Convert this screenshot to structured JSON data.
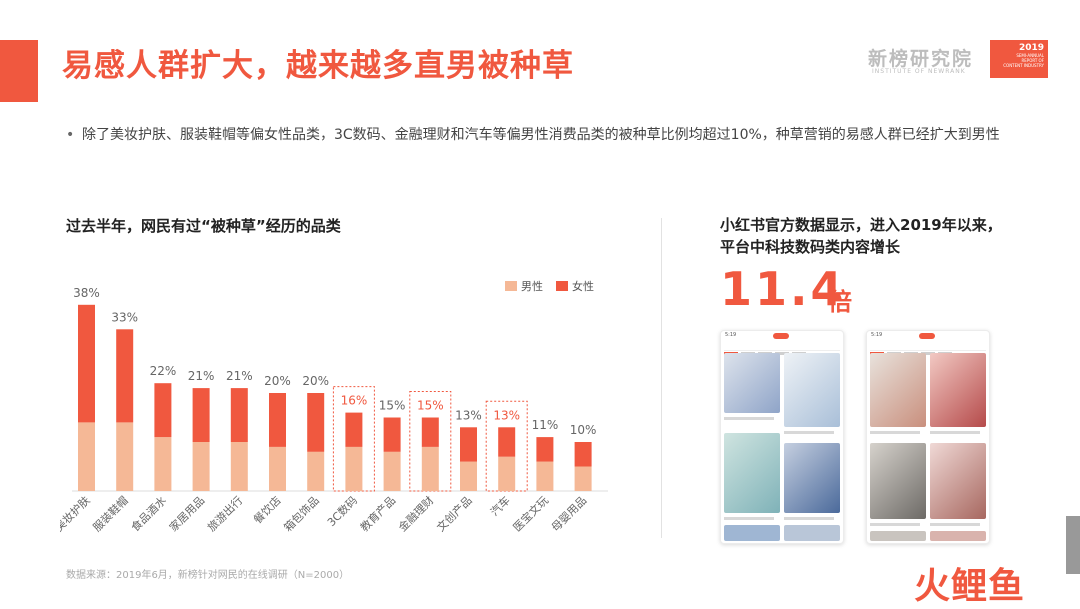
{
  "header": {
    "title": "易感人群扩大，越来越多直男被种草",
    "logo": "新榜研究院",
    "logo_sub": "INSTITUTE OF NEWRANK",
    "badge_year": "2019",
    "badge_lines": [
      "SEMI-ANNUAL",
      "REPORT OF",
      "CONTENT INDUSTRY"
    ]
  },
  "bullet": {
    "marker": "•",
    "text": "除了美妆护肤、服装鞋帽等偏女性品类，3C数码、金融理财和汽车等偏男性消费品类的被种草比例均超过10%，种草营销的易感人群已经扩大到男性"
  },
  "left": {
    "heading": "过去半年，网民有过“被种草”经历的品类"
  },
  "right": {
    "heading_line1": "小红书官方数据显示，进入2019年以来，",
    "heading_line2": "平台中科技数码类内容增长",
    "big_number": "11.4",
    "big_unit": "倍",
    "phone_time": "5:19"
  },
  "source": "数据来源：2019年6月，新榜针对网民的在线调研（N=2000）",
  "footer_logo": "火鲤鱼",
  "colors": {
    "accent": "#f0583f",
    "male": "#f5b896",
    "female": "#f0583f",
    "highlight_label": "#f0583f"
  },
  "chart_data": {
    "type": "bar",
    "stacked": true,
    "categories": [
      "美妆护肤",
      "服装鞋帽",
      "食品酒水",
      "家居用品",
      "旅游出行",
      "餐饮店",
      "箱包饰品",
      "3C数码",
      "教育产品",
      "金融理财",
      "文创产品",
      "汽车",
      "医宝文玩",
      "母婴用品"
    ],
    "totals": [
      38,
      33,
      22,
      21,
      21,
      20,
      20,
      16,
      15,
      15,
      13,
      13,
      11,
      10
    ],
    "total_labels": [
      "38%",
      "33%",
      "22%",
      "21%",
      "21%",
      "20%",
      "20%",
      "16%",
      "15%",
      "15%",
      "13%",
      "13%",
      "11%",
      "10%"
    ],
    "series": [
      {
        "name": "男性",
        "values": [
          14,
          14,
          11,
          10,
          10,
          9,
          8,
          9,
          8,
          9,
          6,
          7,
          6,
          5
        ]
      },
      {
        "name": "女性",
        "values": [
          24,
          19,
          11,
          11,
          11,
          11,
          12,
          7,
          7,
          6,
          7,
          6,
          5,
          5
        ]
      }
    ],
    "highlighted": [
      "3C数码",
      "金融理财",
      "汽车"
    ],
    "legend_position": "top-right",
    "ylim": [
      0,
      40
    ],
    "grid": false
  }
}
